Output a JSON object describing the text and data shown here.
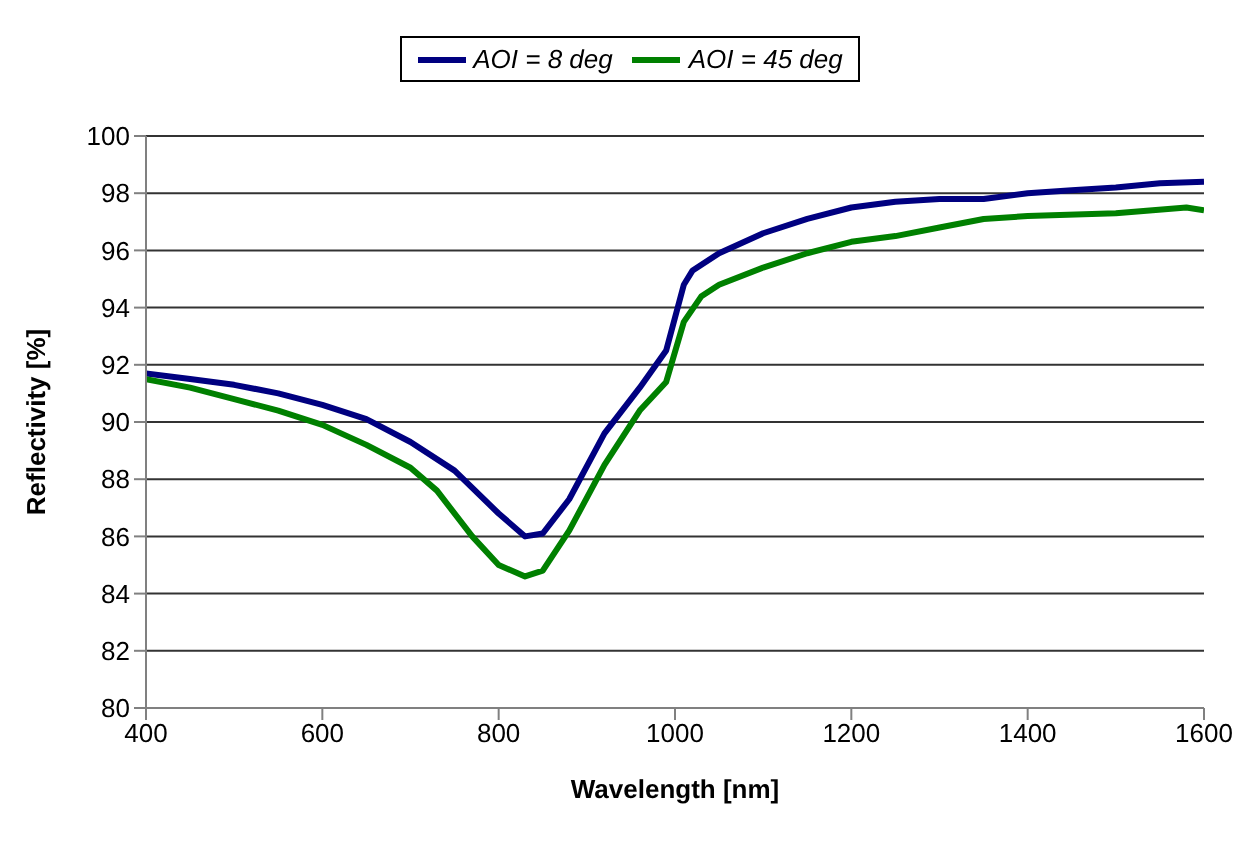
{
  "chart_data": {
    "type": "line",
    "xlabel": "Wavelength [nm]",
    "ylabel": "Reflectivity [%]",
    "xlim": [
      400,
      1600
    ],
    "xticks": [
      400,
      600,
      800,
      1000,
      1200,
      1400,
      1600
    ],
    "ylim": [
      80,
      100
    ],
    "yticks": [
      80,
      82,
      84,
      86,
      88,
      90,
      92,
      94,
      96,
      98,
      100
    ],
    "grid": "y",
    "legend": "top",
    "marker": "none",
    "line_style": "solid",
    "series": [
      {
        "name": "AOI = 8 deg",
        "color": "#000080",
        "x": [
          400,
          450,
          500,
          550,
          600,
          650,
          700,
          750,
          800,
          830,
          850,
          880,
          920,
          960,
          990,
          1010,
          1020,
          1050,
          1100,
          1150,
          1200,
          1250,
          1300,
          1350,
          1400,
          1450,
          1500,
          1550,
          1600
        ],
        "values": [
          91.7,
          91.5,
          91.3,
          91.0,
          90.6,
          90.1,
          89.3,
          88.3,
          86.8,
          86.0,
          86.1,
          87.3,
          89.6,
          91.2,
          92.5,
          94.8,
          95.3,
          95.9,
          96.6,
          97.1,
          97.5,
          97.7,
          97.8,
          97.8,
          98.0,
          98.1,
          98.2,
          98.35,
          98.4
        ]
      },
      {
        "name": "AOI = 45 deg",
        "color": "#008000",
        "x": [
          400,
          450,
          500,
          550,
          600,
          650,
          700,
          730,
          770,
          800,
          830,
          850,
          880,
          920,
          960,
          990,
          1010,
          1030,
          1050,
          1100,
          1150,
          1200,
          1250,
          1300,
          1350,
          1400,
          1500,
          1580,
          1600
        ],
        "values": [
          91.5,
          91.2,
          90.8,
          90.4,
          89.9,
          89.2,
          88.4,
          87.6,
          86.0,
          85.0,
          84.6,
          84.8,
          86.2,
          88.5,
          90.4,
          91.4,
          93.5,
          94.4,
          94.8,
          95.4,
          95.9,
          96.3,
          96.5,
          96.8,
          97.1,
          97.2,
          97.3,
          97.5,
          97.4
        ]
      }
    ]
  }
}
